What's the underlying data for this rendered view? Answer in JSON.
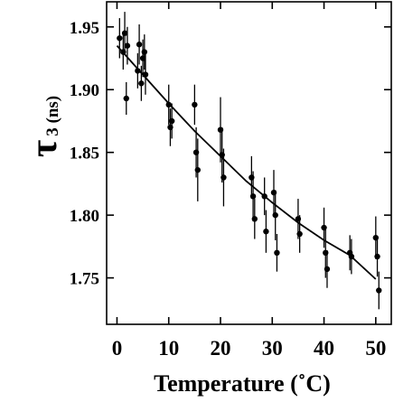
{
  "chart_data": {
    "type": "scatter",
    "title": "",
    "xlabel": "Temperature  (˚C)",
    "ylabel_symbol": "τ",
    "ylabel_subscript": "3 (ns)",
    "xlim": [
      -2,
      53
    ],
    "ylim": [
      1.713,
      1.97
    ],
    "x_ticks": [
      0,
      10,
      20,
      30,
      40,
      50
    ],
    "y_ticks": [
      1.75,
      1.8,
      1.85,
      1.9,
      1.95
    ],
    "y_tick_labels": [
      "1.75",
      "1.80",
      "1.85",
      "1.90",
      "1.95"
    ],
    "grid": false,
    "legend": "none",
    "series": [
      {
        "kind": "points-with-error-bars",
        "x": [
          0.5,
          1.2,
          1.5,
          1.8,
          2.0,
          4.0,
          4.3,
          4.7,
          5.0,
          5.3,
          5.5,
          10.0,
          10.3,
          10.6,
          15.0,
          15.3,
          15.6,
          20.0,
          20.3,
          20.6,
          26.0,
          26.3,
          26.6,
          28.5,
          28.8,
          30.3,
          30.6,
          30.9,
          35.0,
          35.3,
          40.0,
          40.3,
          40.6,
          45.0,
          45.3,
          50.0,
          50.3,
          50.6
        ],
        "y": [
          1.941,
          1.93,
          1.945,
          1.893,
          1.935,
          1.915,
          1.936,
          1.905,
          1.925,
          1.93,
          1.912,
          1.888,
          1.87,
          1.875,
          1.888,
          1.85,
          1.836,
          1.868,
          1.848,
          1.83,
          1.83,
          1.815,
          1.797,
          1.815,
          1.787,
          1.818,
          1.8,
          1.77,
          1.797,
          1.785,
          1.79,
          1.77,
          1.757,
          1.77,
          1.767,
          1.782,
          1.767,
          1.74
        ],
        "err": [
          0.016,
          0.014,
          0.017,
          0.013,
          0.015,
          0.014,
          0.016,
          0.014,
          0.015,
          0.014,
          0.016,
          0.016,
          0.015,
          0.014,
          0.016,
          0.02,
          0.025,
          0.026,
          0.022,
          0.023,
          0.017,
          0.02,
          0.016,
          0.015,
          0.017,
          0.018,
          0.02,
          0.015,
          0.016,
          0.015,
          0.016,
          0.02,
          0.015,
          0.014,
          0.014,
          0.017,
          0.016,
          0.015
        ]
      },
      {
        "kind": "fit-curve",
        "x": [
          0,
          5,
          10,
          15,
          20,
          25,
          30,
          35,
          40,
          45,
          50
        ],
        "y": [
          1.935,
          1.912,
          1.889,
          1.867,
          1.847,
          1.827,
          1.81,
          1.794,
          1.78,
          1.768,
          1.749
        ]
      }
    ]
  }
}
